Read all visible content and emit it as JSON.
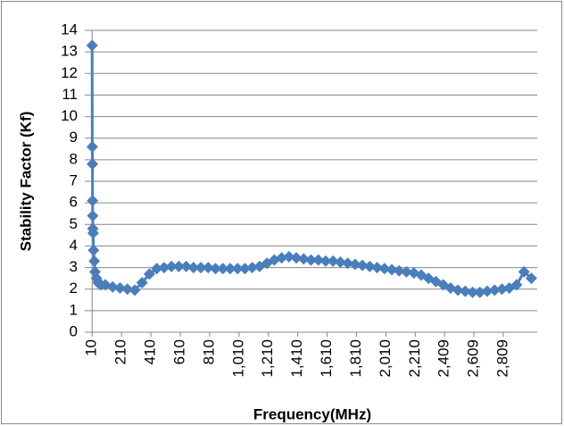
{
  "chart_data": {
    "type": "line",
    "x_label": "Frequency(MHz)",
    "y_label": "Stability Factor (Kf)",
    "x": [
      10,
      11,
      12,
      13,
      14,
      15,
      17,
      20,
      25,
      30,
      40,
      50,
      70,
      100,
      150,
      200,
      250,
      300,
      350,
      400,
      450,
      500,
      550,
      600,
      650,
      700,
      750,
      800,
      850,
      900,
      950,
      1000,
      1050,
      1100,
      1150,
      1200,
      1250,
      1300,
      1350,
      1400,
      1450,
      1500,
      1550,
      1600,
      1650,
      1700,
      1750,
      1800,
      1850,
      1900,
      1950,
      2000,
      2050,
      2100,
      2150,
      2200,
      2250,
      2300,
      2350,
      2400,
      2450,
      2500,
      2550,
      2600,
      2650,
      2700,
      2750,
      2800,
      2850,
      2900,
      2950,
      3000
    ],
    "series": [
      {
        "name": "Kf",
        "color": "#4a7ebb",
        "values": [
          13.3,
          8.6,
          7.8,
          6.1,
          5.4,
          4.8,
          4.6,
          3.8,
          3.3,
          2.8,
          2.5,
          2.3,
          2.2,
          2.2,
          2.1,
          2.05,
          2.0,
          1.95,
          2.3,
          2.7,
          2.95,
          3.0,
          3.05,
          3.05,
          3.05,
          3.0,
          3.0,
          3.0,
          2.95,
          2.95,
          2.95,
          2.95,
          2.95,
          3.0,
          3.05,
          3.2,
          3.35,
          3.45,
          3.5,
          3.45,
          3.4,
          3.35,
          3.35,
          3.3,
          3.3,
          3.25,
          3.2,
          3.15,
          3.1,
          3.05,
          3.0,
          2.95,
          2.9,
          2.85,
          2.8,
          2.75,
          2.65,
          2.5,
          2.35,
          2.2,
          2.05,
          1.95,
          1.9,
          1.85,
          1.85,
          1.9,
          1.95,
          2.0,
          2.05,
          2.2,
          2.8,
          2.5
        ]
      }
    ],
    "xlim": [
      -40,
      3040
    ],
    "xticks": [
      10,
      210,
      410,
      610,
      810,
      {
        "value": 1010,
        "label": "1,010"
      },
      {
        "value": 1210,
        "label": "1,210"
      },
      {
        "value": 1410,
        "label": "1,410"
      },
      {
        "value": 1610,
        "label": "1,610"
      },
      {
        "value": 1810,
        "label": "1,810"
      },
      {
        "value": 2010,
        "label": "2,010"
      },
      {
        "value": 2210,
        "label": "2,210"
      },
      {
        "value": 2409,
        "label": "2,409"
      },
      {
        "value": 2609,
        "label": "2,609"
      },
      {
        "value": 2809,
        "label": "2,809"
      }
    ],
    "ylim": [
      0,
      14
    ],
    "yticks": [
      0,
      1,
      2,
      3,
      4,
      5,
      6,
      7,
      8,
      9,
      10,
      11,
      12,
      13,
      14
    ],
    "grid": true
  }
}
